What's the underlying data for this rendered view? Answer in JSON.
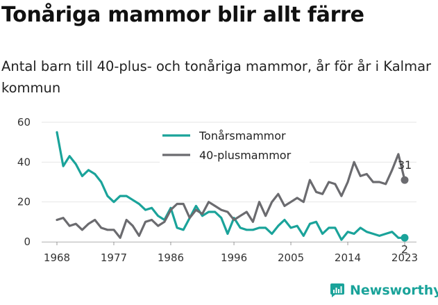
{
  "title": "Tonåriga mammor blir allt färre",
  "subtitle": "Antal barn till 40-plus- och tonåriga mammor, år för år i Kalmar kommun",
  "brand": "Newsworthy",
  "chart_data": {
    "type": "line",
    "x": [
      1968,
      1969,
      1970,
      1971,
      1972,
      1973,
      1974,
      1975,
      1976,
      1977,
      1978,
      1979,
      1980,
      1981,
      1982,
      1983,
      1984,
      1985,
      1986,
      1987,
      1988,
      1989,
      1990,
      1991,
      1992,
      1993,
      1994,
      1995,
      1996,
      1997,
      1998,
      1999,
      2000,
      2001,
      2002,
      2003,
      2004,
      2005,
      2006,
      2007,
      2008,
      2009,
      2010,
      2011,
      2012,
      2013,
      2014,
      2015,
      2016,
      2017,
      2018,
      2019,
      2020,
      2021,
      2022,
      2023
    ],
    "series": [
      {
        "name": "Tonårsmammor",
        "color": "#1aa39a",
        "values": [
          55,
          38,
          43,
          39,
          33,
          36,
          34,
          30,
          23,
          20,
          23,
          23,
          21,
          19,
          16,
          17,
          13,
          11,
          17,
          7,
          6,
          12,
          18,
          13,
          15,
          15,
          12,
          4,
          12,
          7,
          6,
          6,
          7,
          7,
          4,
          8,
          11,
          7,
          8,
          3,
          9,
          10,
          4,
          7,
          7,
          1,
          5,
          4,
          7,
          5,
          4,
          3,
          4,
          5,
          2,
          2
        ]
      },
      {
        "name": "40-plusmammor",
        "color": "#6b6b6f",
        "values": [
          11,
          12,
          8,
          9,
          6,
          9,
          11,
          7,
          6,
          6,
          2,
          11,
          8,
          3,
          10,
          11,
          8,
          10,
          16,
          19,
          19,
          12,
          16,
          14,
          20,
          18,
          16,
          15,
          11,
          13,
          15,
          10,
          20,
          13,
          20,
          24,
          18,
          20,
          22,
          20,
          31,
          25,
          24,
          30,
          29,
          23,
          30,
          40,
          33,
          34,
          30,
          30,
          29,
          36,
          44,
          31
        ]
      }
    ],
    "end_labels": {
      "Tonårsmammor": "2",
      "40-plusmammor": "31"
    },
    "xticks": [
      1968,
      1977,
      1986,
      1996,
      2005,
      2014,
      2023
    ],
    "yticks": [
      0,
      20,
      40,
      60
    ],
    "ylim": [
      0,
      60
    ],
    "xlim": [
      1968,
      2023
    ],
    "grid": "horizontal",
    "legend": "top-center"
  }
}
